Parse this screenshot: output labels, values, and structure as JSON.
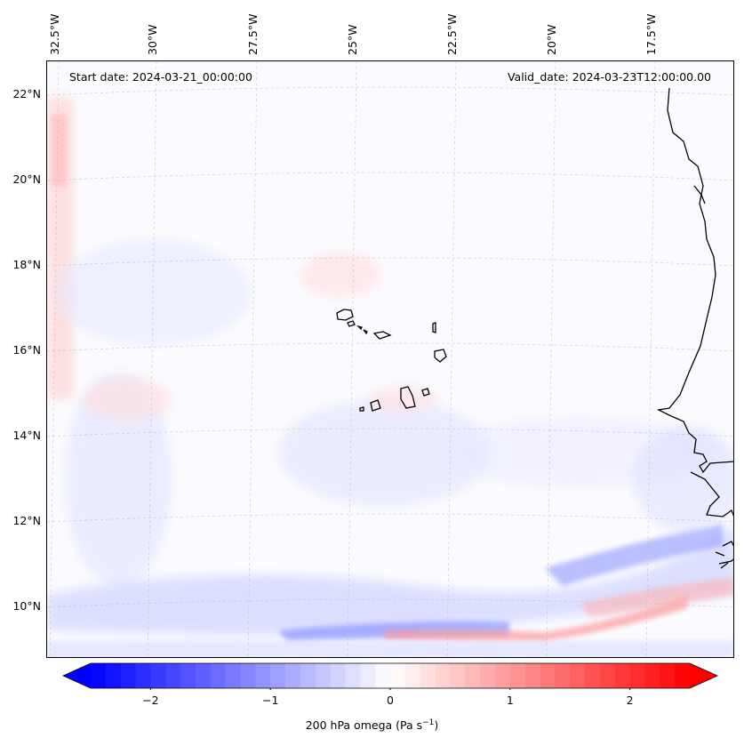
{
  "map": {
    "start_date": "Start date: 2024-03-21_00:00:00",
    "valid_date": "Valid_date: 2024-03-23T12:00:00.00",
    "lon_labels": [
      "32.5°W",
      "30°W",
      "27.5°W",
      "25°W",
      "22.5°W",
      "20°W",
      "17.5°W"
    ],
    "lat_labels": [
      "22°N",
      "20°N",
      "18°N",
      "16°N",
      "14°N",
      "12°N",
      "10°N"
    ],
    "extent": {
      "lon_min": -32.5,
      "lon_max": -15.9,
      "lat_min": 8.9,
      "lat_max": 22.7
    },
    "field": "200 hPa omega",
    "colors": {
      "negative": "#0000ff",
      "positive": "#ff0000",
      "neutral": "#ffffff",
      "coast": "#000000"
    }
  },
  "colorbar": {
    "label_main": "200 hPa omega (Pa s",
    "label_sup": "−1",
    "label_end": ")",
    "ticks": [
      "−2",
      "−1",
      "0",
      "1",
      "2"
    ],
    "tick_values": [
      -2,
      -1,
      0,
      1,
      2
    ],
    "range": [
      -2.5,
      2.5
    ],
    "extend": "both"
  }
}
